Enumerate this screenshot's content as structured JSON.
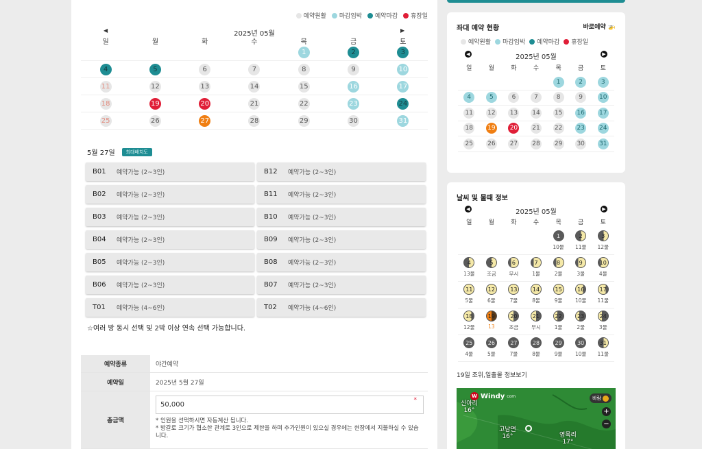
{
  "legend": [
    {
      "label": "예약원활",
      "color": "#e6e6e6"
    },
    {
      "label": "마감임박",
      "color": "#9dd7df"
    },
    {
      "label": "예약마감",
      "color": "#1e8d93"
    },
    {
      "label": "휴장일",
      "color": "#e01e37"
    }
  ],
  "calendar": {
    "month": "2025년 05월",
    "prev": "◀",
    "next": "▶",
    "weekdays": [
      "일",
      "월",
      "화",
      "수",
      "목",
      "금",
      "토"
    ],
    "weeks": [
      [
        null,
        null,
        null,
        null,
        {
          "d": "1",
          "s": "soon"
        },
        {
          "d": "2",
          "s": "closed"
        },
        {
          "d": "3",
          "s": "closed"
        }
      ],
      [
        {
          "d": "4",
          "s": "closed"
        },
        {
          "d": "5",
          "s": "closed"
        },
        {
          "d": "6",
          "s": "avail"
        },
        {
          "d": "7",
          "s": "avail"
        },
        {
          "d": "8",
          "s": "avail"
        },
        {
          "d": "9",
          "s": "avail"
        },
        {
          "d": "10",
          "s": "pastsoon"
        }
      ],
      [
        {
          "d": "11",
          "s": "sun"
        },
        {
          "d": "12",
          "s": "avail"
        },
        {
          "d": "13",
          "s": "avail"
        },
        {
          "d": "14",
          "s": "avail"
        },
        {
          "d": "15",
          "s": "avail"
        },
        {
          "d": "16",
          "s": "soon"
        },
        {
          "d": "17",
          "s": "pastsoon"
        }
      ],
      [
        {
          "d": "18",
          "s": "sun"
        },
        {
          "d": "19",
          "s": "holiday"
        },
        {
          "d": "20",
          "s": "holiday"
        },
        {
          "d": "21",
          "s": "avail"
        },
        {
          "d": "22",
          "s": "avail"
        },
        {
          "d": "23",
          "s": "soon"
        },
        {
          "d": "24",
          "s": "closed"
        }
      ],
      [
        {
          "d": "25",
          "s": "sun"
        },
        {
          "d": "26",
          "s": "avail"
        },
        {
          "d": "27",
          "s": "selected"
        },
        {
          "d": "28",
          "s": "avail"
        },
        {
          "d": "29",
          "s": "avail"
        },
        {
          "d": "30",
          "s": "avail"
        },
        {
          "d": "31",
          "s": "pastsoon"
        }
      ]
    ]
  },
  "selected_date": "5월 27일",
  "badge": "최대배치도",
  "rooms": [
    {
      "code": "B01",
      "status": "예약가능 (2~3인)"
    },
    {
      "code": "B12",
      "status": "예약가능 (2~3인)"
    },
    {
      "code": "B02",
      "status": "예약가능 (2~3인)"
    },
    {
      "code": "B11",
      "status": "예약가능 (2~3인)"
    },
    {
      "code": "B03",
      "status": "예약가능 (2~3인)"
    },
    {
      "code": "B10",
      "status": "예약가능 (2~3인)"
    },
    {
      "code": "B04",
      "status": "예약가능 (2~3인)"
    },
    {
      "code": "B09",
      "status": "예약가능 (2~3인)"
    },
    {
      "code": "B05",
      "status": "예약가능 (2~3인)"
    },
    {
      "code": "B08",
      "status": "예약가능 (2~3인)"
    },
    {
      "code": "B06",
      "status": "예약가능 (2~3인)"
    },
    {
      "code": "B07",
      "status": "예약가능 (2~3인)"
    },
    {
      "code": "T01",
      "status": "예약가능 (4~6인)"
    },
    {
      "code": "T02",
      "status": "예약가능 (4~6인)"
    }
  ],
  "note": "☆여러 방 동시 선택 및 2박 이상 연속 선택 가능합니다.",
  "form": {
    "type_label": "예약종류",
    "type_value": "야간예약",
    "date_label": "예약일",
    "date_value": "2025년 5월 27일",
    "amount_label": "총금액",
    "amount_value": "50,000",
    "required_mark": "*",
    "note1": "* 인원을 선택하시면 자동계산 됩니다.",
    "note2": "* 방갈로 크기가 협소한 관계로 3인으로 제한을 하며 추가인원이 있으실 경우에는 현장에서 지불하실 수 있습니다."
  },
  "side_status": {
    "title": "좌대 예약 현황",
    "link": "바로예약 🚁",
    "month": "2025년 05월",
    "weekdays": [
      "일",
      "월",
      "화",
      "수",
      "목",
      "금",
      "토"
    ],
    "weeks": [
      [
        null,
        null,
        null,
        null,
        {
          "d": "1",
          "s": "soon"
        },
        {
          "d": "2",
          "s": "soon"
        },
        {
          "d": "3",
          "s": "soon"
        }
      ],
      [
        {
          "d": "4",
          "s": "soon"
        },
        {
          "d": "5",
          "s": "soon"
        },
        {
          "d": "6",
          "s": "avail"
        },
        {
          "d": "7",
          "s": "avail"
        },
        {
          "d": "8",
          "s": "avail"
        },
        {
          "d": "9",
          "s": "avail"
        },
        {
          "d": "10",
          "s": "soon"
        }
      ],
      [
        {
          "d": "11",
          "s": "avail"
        },
        {
          "d": "12",
          "s": "avail"
        },
        {
          "d": "13",
          "s": "avail"
        },
        {
          "d": "14",
          "s": "avail"
        },
        {
          "d": "15",
          "s": "avail"
        },
        {
          "d": "16",
          "s": "soon"
        },
        {
          "d": "17",
          "s": "soon"
        }
      ],
      [
        {
          "d": "18",
          "s": "avail"
        },
        {
          "d": "19",
          "s": "selected"
        },
        {
          "d": "20",
          "s": "holiday"
        },
        {
          "d": "21",
          "s": "avail"
        },
        {
          "d": "22",
          "s": "avail"
        },
        {
          "d": "23",
          "s": "soon"
        },
        {
          "d": "24",
          "s": "soon"
        }
      ],
      [
        {
          "d": "25",
          "s": "avail"
        },
        {
          "d": "26",
          "s": "avail"
        },
        {
          "d": "27",
          "s": "avail"
        },
        {
          "d": "28",
          "s": "avail"
        },
        {
          "d": "29",
          "s": "avail"
        },
        {
          "d": "30",
          "s": "avail"
        },
        {
          "d": "31",
          "s": "soon"
        }
      ]
    ]
  },
  "weather": {
    "title": "날씨 및 물때 정보",
    "month": "2025년 05월",
    "weekdays": [
      "일",
      "월",
      "화",
      "수",
      "목",
      "금",
      "토"
    ],
    "weeks": [
      [
        null,
        null,
        null,
        null,
        {
          "d": "1",
          "m": "new",
          "t": "10물"
        },
        {
          "d": "2",
          "m": "cres",
          "t": "11물"
        },
        {
          "d": "3",
          "m": "cres",
          "t": "12물"
        }
      ],
      [
        {
          "d": "4",
          "m": "half",
          "t": "13물"
        },
        {
          "d": "5",
          "m": "half",
          "t": "조금"
        },
        {
          "d": "6",
          "m": "gib",
          "t": "무시"
        },
        {
          "d": "7",
          "m": "gib",
          "t": "1물"
        },
        {
          "d": "8",
          "m": "gib",
          "t": "2물"
        },
        {
          "d": "9",
          "m": "gib",
          "t": "3물"
        },
        {
          "d": "10",
          "m": "gib",
          "t": "4물"
        }
      ],
      [
        {
          "d": "11",
          "m": "full",
          "t": "5물"
        },
        {
          "d": "12",
          "m": "full",
          "t": "6물"
        },
        {
          "d": "13",
          "m": "full",
          "t": "7물"
        },
        {
          "d": "14",
          "m": "full",
          "t": "8물"
        },
        {
          "d": "15",
          "m": "full",
          "t": "9물"
        },
        {
          "d": "16",
          "m": "wgib",
          "t": "10물"
        },
        {
          "d": "17",
          "m": "wgib",
          "t": "11물"
        }
      ],
      [
        {
          "d": "18",
          "m": "wgib",
          "t": "12물"
        },
        {
          "d": "19",
          "m": "sel",
          "t": "13",
          "hl": true
        },
        {
          "d": "20",
          "m": "whalf",
          "t": "조금"
        },
        {
          "d": "21",
          "m": "whalf",
          "t": "무시"
        },
        {
          "d": "22",
          "m": "wcres",
          "t": "1물"
        },
        {
          "d": "23",
          "m": "wcres",
          "t": "2물"
        },
        {
          "d": "24",
          "m": "wcres",
          "t": "3물"
        }
      ],
      [
        {
          "d": "25",
          "m": "new",
          "t": "4물"
        },
        {
          "d": "26",
          "m": "new",
          "t": "5물"
        },
        {
          "d": "27",
          "m": "new",
          "t": "7물"
        },
        {
          "d": "28",
          "m": "new",
          "t": "8물"
        },
        {
          "d": "29",
          "m": "new",
          "t": "9물"
        },
        {
          "d": "30",
          "m": "new",
          "t": "10물"
        },
        {
          "d": "31",
          "m": "cres",
          "t": "11물"
        }
      ]
    ],
    "tide_link": "19일 조위,일출몰 정보보기"
  },
  "map": {
    "brand": "Windy",
    "brand_suffix": "com",
    "wind_button": "바람",
    "zoom_in": "+",
    "zoom_out": "−",
    "places": [
      {
        "name": "신아리",
        "temp": "16°"
      },
      {
        "name": "고남면",
        "temp": "16°"
      },
      {
        "name": "영목리",
        "temp": "17°"
      }
    ]
  }
}
